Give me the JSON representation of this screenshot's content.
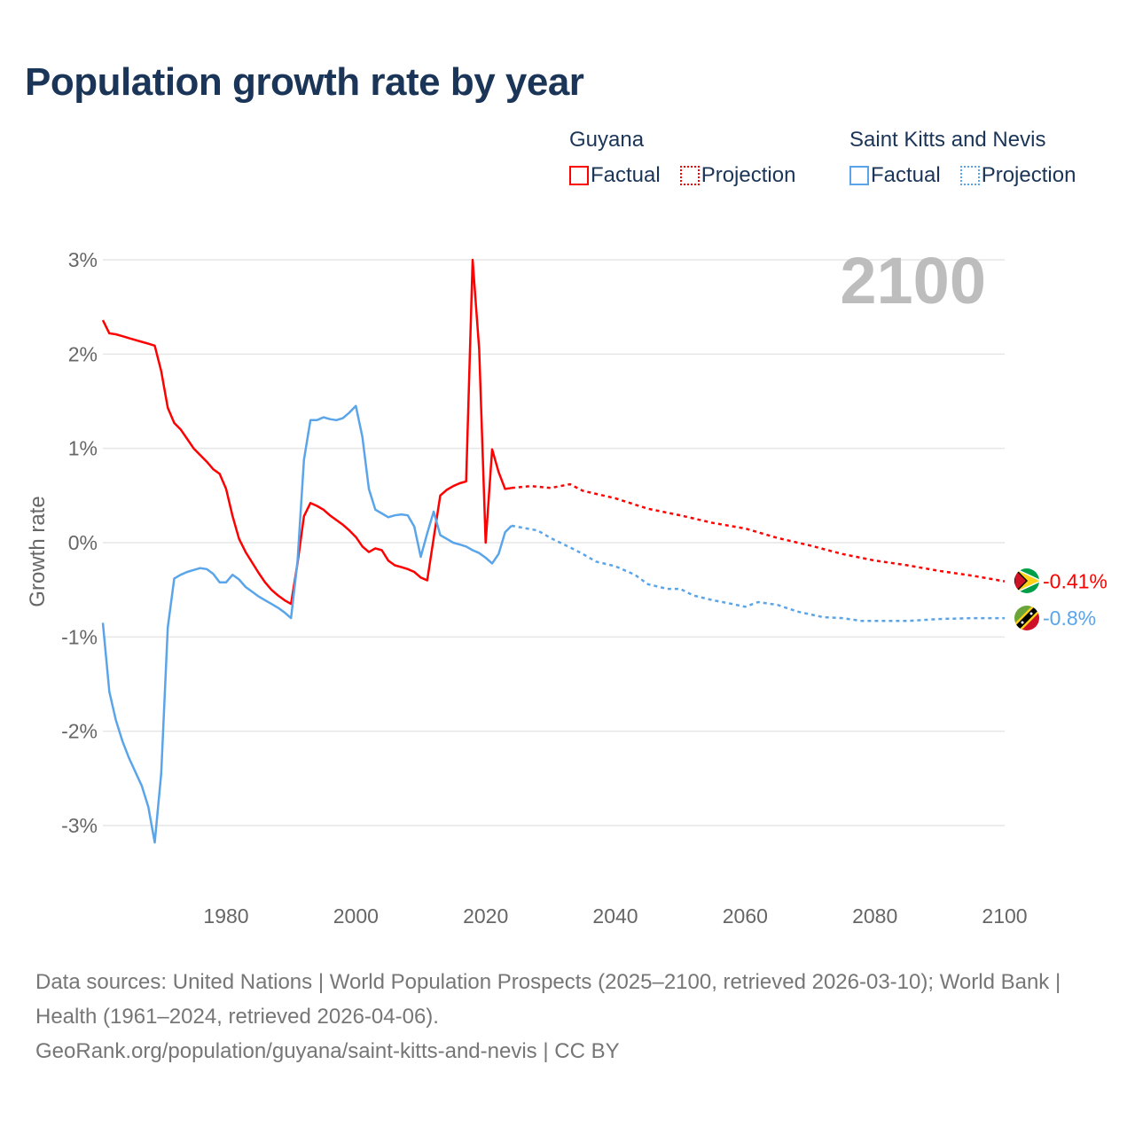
{
  "title": "Population growth rate by year",
  "legend": {
    "groups": [
      {
        "name": "Guyana",
        "color": "#ff0000",
        "factual": "Factual",
        "projection": "Projection"
      },
      {
        "name": "Saint Kitts and Nevis",
        "color": "#5aa5ea",
        "factual": "Factual",
        "projection": "Projection"
      }
    ]
  },
  "year_label": "2100",
  "footer": {
    "sources": "Data sources: United Nations | World Population Prospects (2025–2100, retrieved 2026-03-10); World Bank | Health (1961–2024, retrieved 2026-04-06).",
    "link": "GeoRank.org/population/guyana/saint-kitts-and-nevis | CC BY"
  },
  "chart_data": {
    "type": "line",
    "title": "Population growth rate by year",
    "xlabel": "",
    "ylabel": "Growth rate",
    "xlim": [
      1961,
      2100
    ],
    "ylim": [
      -3,
      3
    ],
    "xticks": [
      1980,
      2000,
      2020,
      2040,
      2060,
      2080,
      2100
    ],
    "xtick_labels": [
      "1980",
      "2000",
      "2020",
      "2040",
      "2060",
      "2080",
      "2100"
    ],
    "yticks": [
      3,
      2,
      1,
      0,
      -1,
      -2,
      -3
    ],
    "ytick_labels": [
      "3%",
      "2%",
      "1%",
      "0%",
      "-1%",
      "-2%",
      "-3%"
    ],
    "grid": true,
    "legend_position": "top-right",
    "series": [
      {
        "name": "Guyana",
        "type": "factual",
        "color": "#ff0000",
        "x": [
          1961,
          1962,
          1963,
          1964,
          1965,
          1966,
          1967,
          1968,
          1969,
          1970,
          1971,
          1972,
          1973,
          1974,
          1975,
          1976,
          1977,
          1978,
          1979,
          1980,
          1981,
          1982,
          1983,
          1984,
          1985,
          1986,
          1987,
          1988,
          1989,
          1990,
          1991,
          1992,
          1993,
          1994,
          1995,
          1996,
          1997,
          1998,
          1999,
          2000,
          2001,
          2002,
          2003,
          2004,
          2005,
          2006,
          2007,
          2008,
          2009,
          2010,
          2011,
          2012,
          2013,
          2014,
          2015,
          2016,
          2017,
          2018,
          2019,
          2020,
          2021,
          2022,
          2023,
          2024
        ],
        "y": [
          2.36,
          2.22,
          2.21,
          2.19,
          2.17,
          2.15,
          2.13,
          2.11,
          2.09,
          1.82,
          1.43,
          1.27,
          1.2,
          1.1,
          1.0,
          0.93,
          0.86,
          0.78,
          0.73,
          0.57,
          0.28,
          0.04,
          -0.1,
          -0.21,
          -0.32,
          -0.42,
          -0.5,
          -0.56,
          -0.61,
          -0.65,
          -0.22,
          0.28,
          0.42,
          0.39,
          0.35,
          0.29,
          0.24,
          0.19,
          0.13,
          0.06,
          -0.04,
          -0.1,
          -0.06,
          -0.08,
          -0.19,
          -0.24,
          -0.26,
          -0.28,
          -0.31,
          -0.37,
          -0.4,
          0.05,
          0.5,
          0.56,
          0.6,
          0.63,
          0.65,
          3.0,
          2.05,
          0.0,
          0.99,
          0.75,
          0.57,
          0.58
        ]
      },
      {
        "name": "Guyana",
        "type": "projection",
        "color": "#ff0000",
        "x": [
          2024,
          2027,
          2030,
          2033,
          2035,
          2040,
          2045,
          2050,
          2055,
          2060,
          2065,
          2070,
          2075,
          2080,
          2085,
          2090,
          2095,
          2100
        ],
        "y": [
          0.58,
          0.6,
          0.58,
          0.62,
          0.55,
          0.47,
          0.36,
          0.29,
          0.21,
          0.15,
          0.05,
          -0.03,
          -0.12,
          -0.19,
          -0.24,
          -0.3,
          -0.35,
          -0.41
        ]
      },
      {
        "name": "Saint Kitts and Nevis",
        "type": "factual",
        "color": "#5aa5ea",
        "x": [
          1961,
          1962,
          1963,
          1964,
          1965,
          1966,
          1967,
          1968,
          1969,
          1970,
          1971,
          1972,
          1973,
          1974,
          1975,
          1976,
          1977,
          1978,
          1979,
          1980,
          1981,
          1982,
          1983,
          1984,
          1985,
          1986,
          1987,
          1988,
          1989,
          1990,
          1991,
          1992,
          1993,
          1994,
          1995,
          1996,
          1997,
          1998,
          1999,
          2000,
          2001,
          2002,
          2003,
          2004,
          2005,
          2006,
          2007,
          2008,
          2009,
          2010,
          2011,
          2012,
          2013,
          2014,
          2015,
          2016,
          2017,
          2018,
          2019,
          2020,
          2021,
          2022,
          2023,
          2024
        ],
        "y": [
          -0.85,
          -1.58,
          -1.88,
          -2.1,
          -2.28,
          -2.43,
          -2.58,
          -2.8,
          -3.18,
          -2.45,
          -0.9,
          -0.38,
          -0.34,
          -0.31,
          -0.29,
          -0.27,
          -0.28,
          -0.33,
          -0.42,
          -0.42,
          -0.34,
          -0.39,
          -0.47,
          -0.52,
          -0.57,
          -0.61,
          -0.65,
          -0.69,
          -0.74,
          -0.8,
          -0.2,
          0.88,
          1.3,
          1.3,
          1.33,
          1.31,
          1.3,
          1.32,
          1.38,
          1.45,
          1.12,
          0.57,
          0.35,
          0.31,
          0.27,
          0.29,
          0.3,
          0.29,
          0.17,
          -0.15,
          0.1,
          0.33,
          0.08,
          0.04,
          0.0,
          -0.02,
          -0.04,
          -0.08,
          -0.11,
          -0.16,
          -0.22,
          -0.12,
          0.11,
          0.18
        ]
      },
      {
        "name": "Saint Kitts and Nevis",
        "type": "projection",
        "color": "#5aa5ea",
        "x": [
          2024,
          2028,
          2030,
          2033,
          2035,
          2037,
          2040,
          2043,
          2045,
          2048,
          2050,
          2052,
          2055,
          2058,
          2060,
          2062,
          2065,
          2068,
          2070,
          2072,
          2075,
          2078,
          2080,
          2085,
          2090,
          2095,
          2100
        ],
        "y": [
          0.18,
          0.13,
          0.05,
          -0.05,
          -0.12,
          -0.2,
          -0.25,
          -0.34,
          -0.44,
          -0.49,
          -0.49,
          -0.56,
          -0.61,
          -0.65,
          -0.68,
          -0.63,
          -0.66,
          -0.73,
          -0.76,
          -0.79,
          -0.8,
          -0.83,
          -0.83,
          -0.83,
          -0.81,
          -0.8,
          -0.8
        ]
      }
    ],
    "end_labels": [
      {
        "series": "Guyana",
        "text": "-0.41%",
        "value": -0.41,
        "color": "#ff0000"
      },
      {
        "series": "Saint Kitts and Nevis",
        "text": "-0.8%",
        "value": -0.8,
        "color": "#5aa5ea"
      }
    ]
  }
}
